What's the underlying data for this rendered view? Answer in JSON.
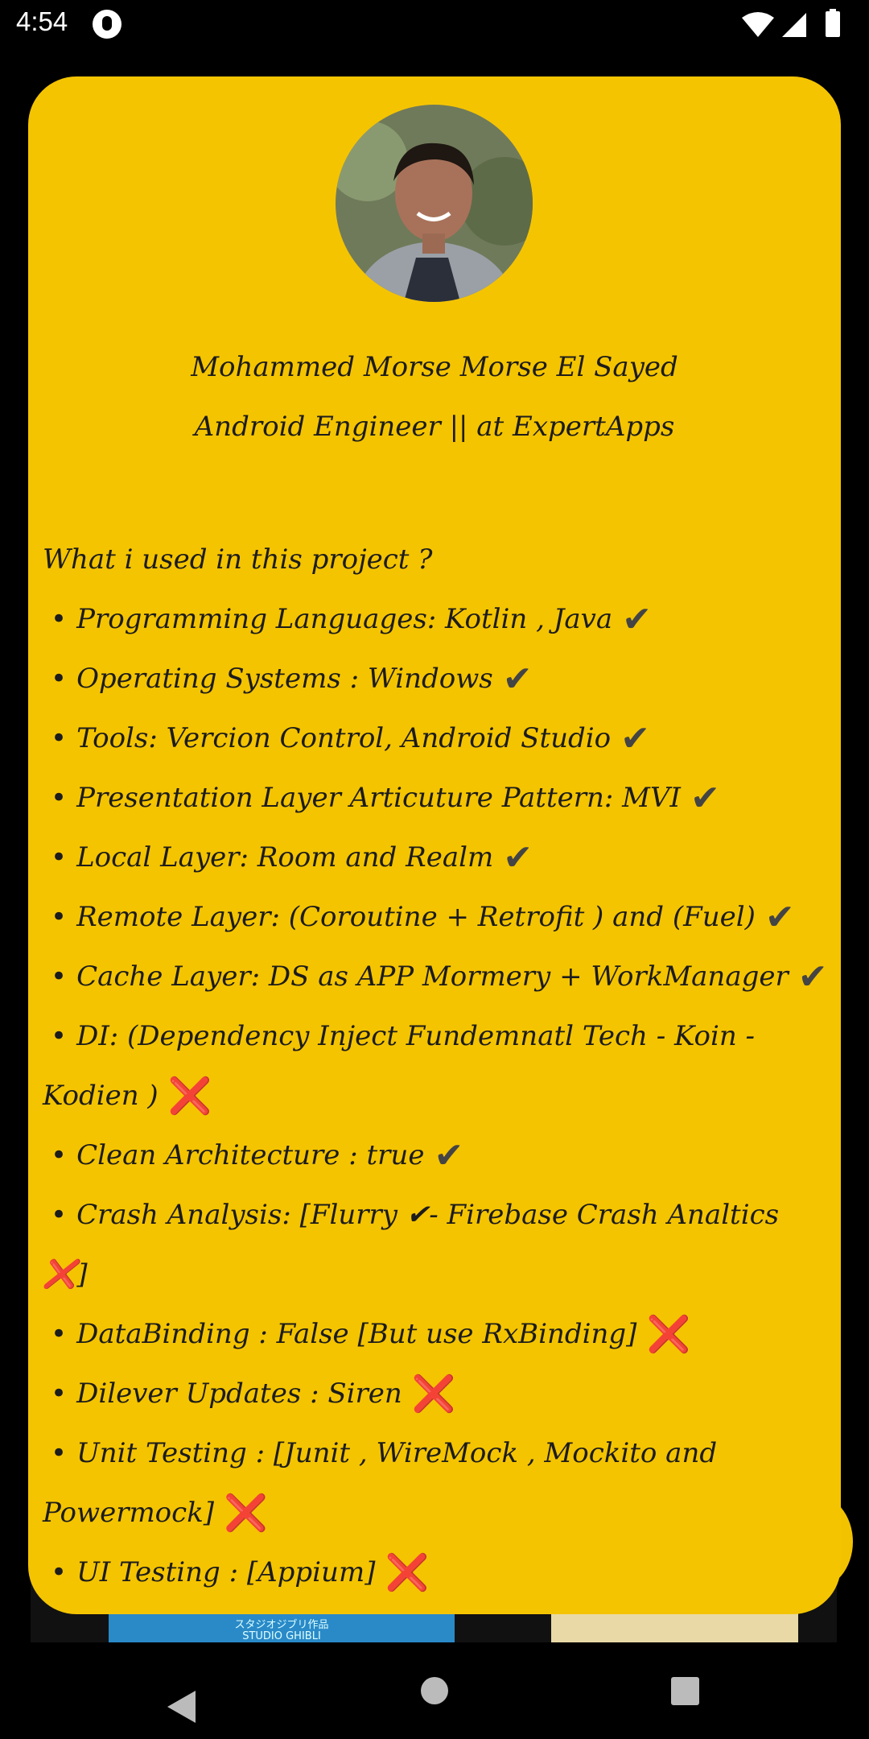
{
  "status_bar": {
    "time": "4:54",
    "icons": [
      "app-notification-icon",
      "wifi-icon",
      "signal-icon",
      "battery-icon"
    ]
  },
  "background": {
    "thumb_left_label": "スタジオジブリ作品\nSTUDIO GHIBLI"
  },
  "profile": {
    "avatar_icon": "profile-photo",
    "name": "Mohammed Morse Morse El Sayed",
    "title": "Android Engineer || at ExpertApps"
  },
  "project": {
    "question": "What i used in this project ?",
    "items": [
      {
        "text": "Programming Languages: Kotlin , Java",
        "mark": "✔",
        "status": "check"
      },
      {
        "text": "Operating Systems : Windows",
        "mark": "✔",
        "status": "check"
      },
      {
        "text": "Tools: Vercion Control, Android Studio",
        "mark": "✔",
        "status": "check"
      },
      {
        "text": "Presentation Layer Articuture Pattern: MVI",
        "mark": "✔",
        "status": "check"
      },
      {
        "text": "Local Layer: Room and Realm",
        "mark": "✔",
        "status": "check"
      },
      {
        "text": "Remote Layer: (Coroutine + Retrofit ) and (Fuel)",
        "mark": "✔",
        "status": "check"
      },
      {
        "text": "Cache Layer: DS as APP Mormery + WorkManager",
        "mark": "✔",
        "status": "check"
      },
      {
        "text": "DI: (Dependency Inject Fundemnatl Tech - Koin - Kodien )",
        "mark": "❌",
        "status": "cross"
      },
      {
        "text": "Clean Architecture : true",
        "mark": "✔",
        "status": "check"
      },
      {
        "text": "Crash Analysis: [Flurry ✔- Firebase Crash Analtics ❌]",
        "mark": "",
        "status": "none"
      },
      {
        "text": "DataBinding : False [But use RxBinding]",
        "mark": "❌",
        "status": "cross"
      },
      {
        "text": "Dilever Updates : Siren",
        "mark": "❌",
        "status": "cross"
      },
      {
        "text": "Unit Testing : [Junit , WireMock , Mockito and Powermock]",
        "mark": "❌",
        "status": "cross"
      },
      {
        "text": "UI Testing : [Appium]",
        "mark": "❌",
        "status": "cross"
      }
    ]
  },
  "colors": {
    "card_background": "#f5c400",
    "check": "#444444",
    "cross": "#e0121f"
  },
  "nav_bar": {
    "buttons": [
      "back-icon",
      "home-icon",
      "recents-icon"
    ]
  }
}
